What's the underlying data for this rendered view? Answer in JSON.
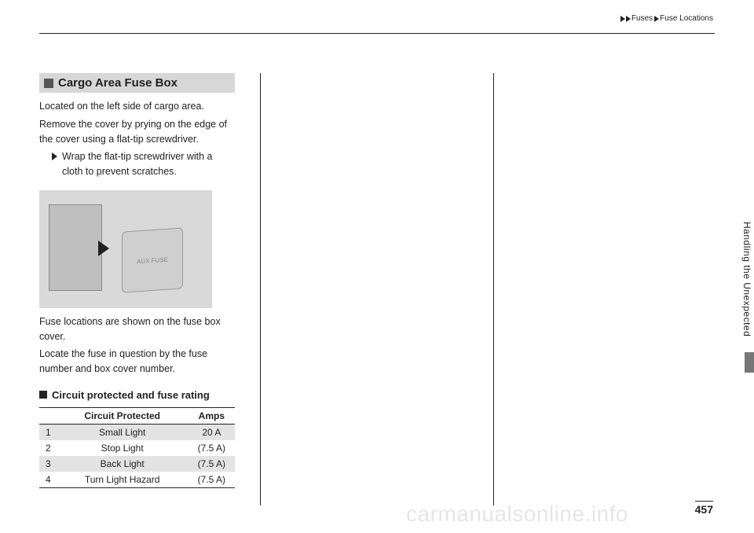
{
  "breadcrumb": {
    "a": "Fuses",
    "b": "Fuse Locations"
  },
  "section": {
    "title": "Cargo Area Fuse Box",
    "p1": "Located on the left side of cargo area.",
    "p2": "Remove the cover by prying on the edge of the cover using a flat-tip screwdriver.",
    "bullet": "Wrap the flat-tip screwdriver with a cloth to prevent scratches.",
    "p3": "Fuse locations are shown on the fuse box cover.",
    "p4": "Locate the fuse in question by the fuse number and box cover number."
  },
  "illustration_label": "AUX.FUSE",
  "subhead": "Circuit protected and fuse rating",
  "table": {
    "h1": "Circuit Protected",
    "h2": "Amps",
    "rows": [
      {
        "n": "1",
        "name": "Small Light",
        "amp": "20 A"
      },
      {
        "n": "2",
        "name": "Stop Light",
        "amp": "(7.5 A)"
      },
      {
        "n": "3",
        "name": "Back Light",
        "amp": "(7.5 A)"
      },
      {
        "n": "4",
        "name": "Turn Light Hazard",
        "amp": "(7.5 A)"
      }
    ]
  },
  "side_label": "Handling the Unexpected",
  "page_number": "457",
  "watermark": "carmanualsonline.info"
}
